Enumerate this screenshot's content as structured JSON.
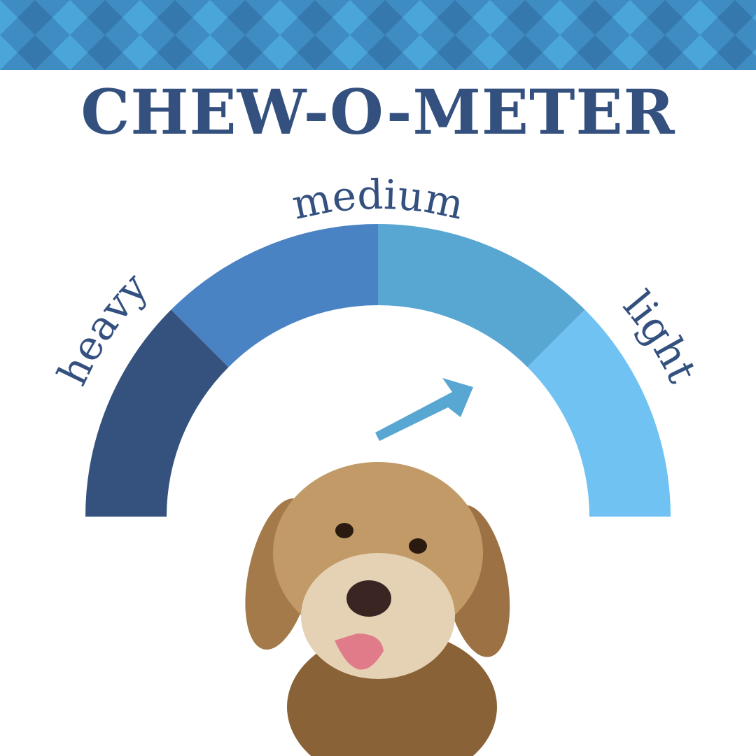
{
  "title": "CHEW-O-METER",
  "gauge": {
    "labels": [
      "heavy",
      "medium",
      "light"
    ],
    "segment_colors": [
      "#34527d",
      "#4a83c4",
      "#58a6d2",
      "#6fc2f2"
    ],
    "pointer_color": "#58a6d2",
    "indicated_level": "between medium and light"
  },
  "colors": {
    "title": "#33507e",
    "banner_light": "#4aa6d8",
    "banner_mid": "#3f8cc2",
    "banner_dark": "#3578ad"
  },
  "image": {
    "subject": "dog-photo"
  }
}
